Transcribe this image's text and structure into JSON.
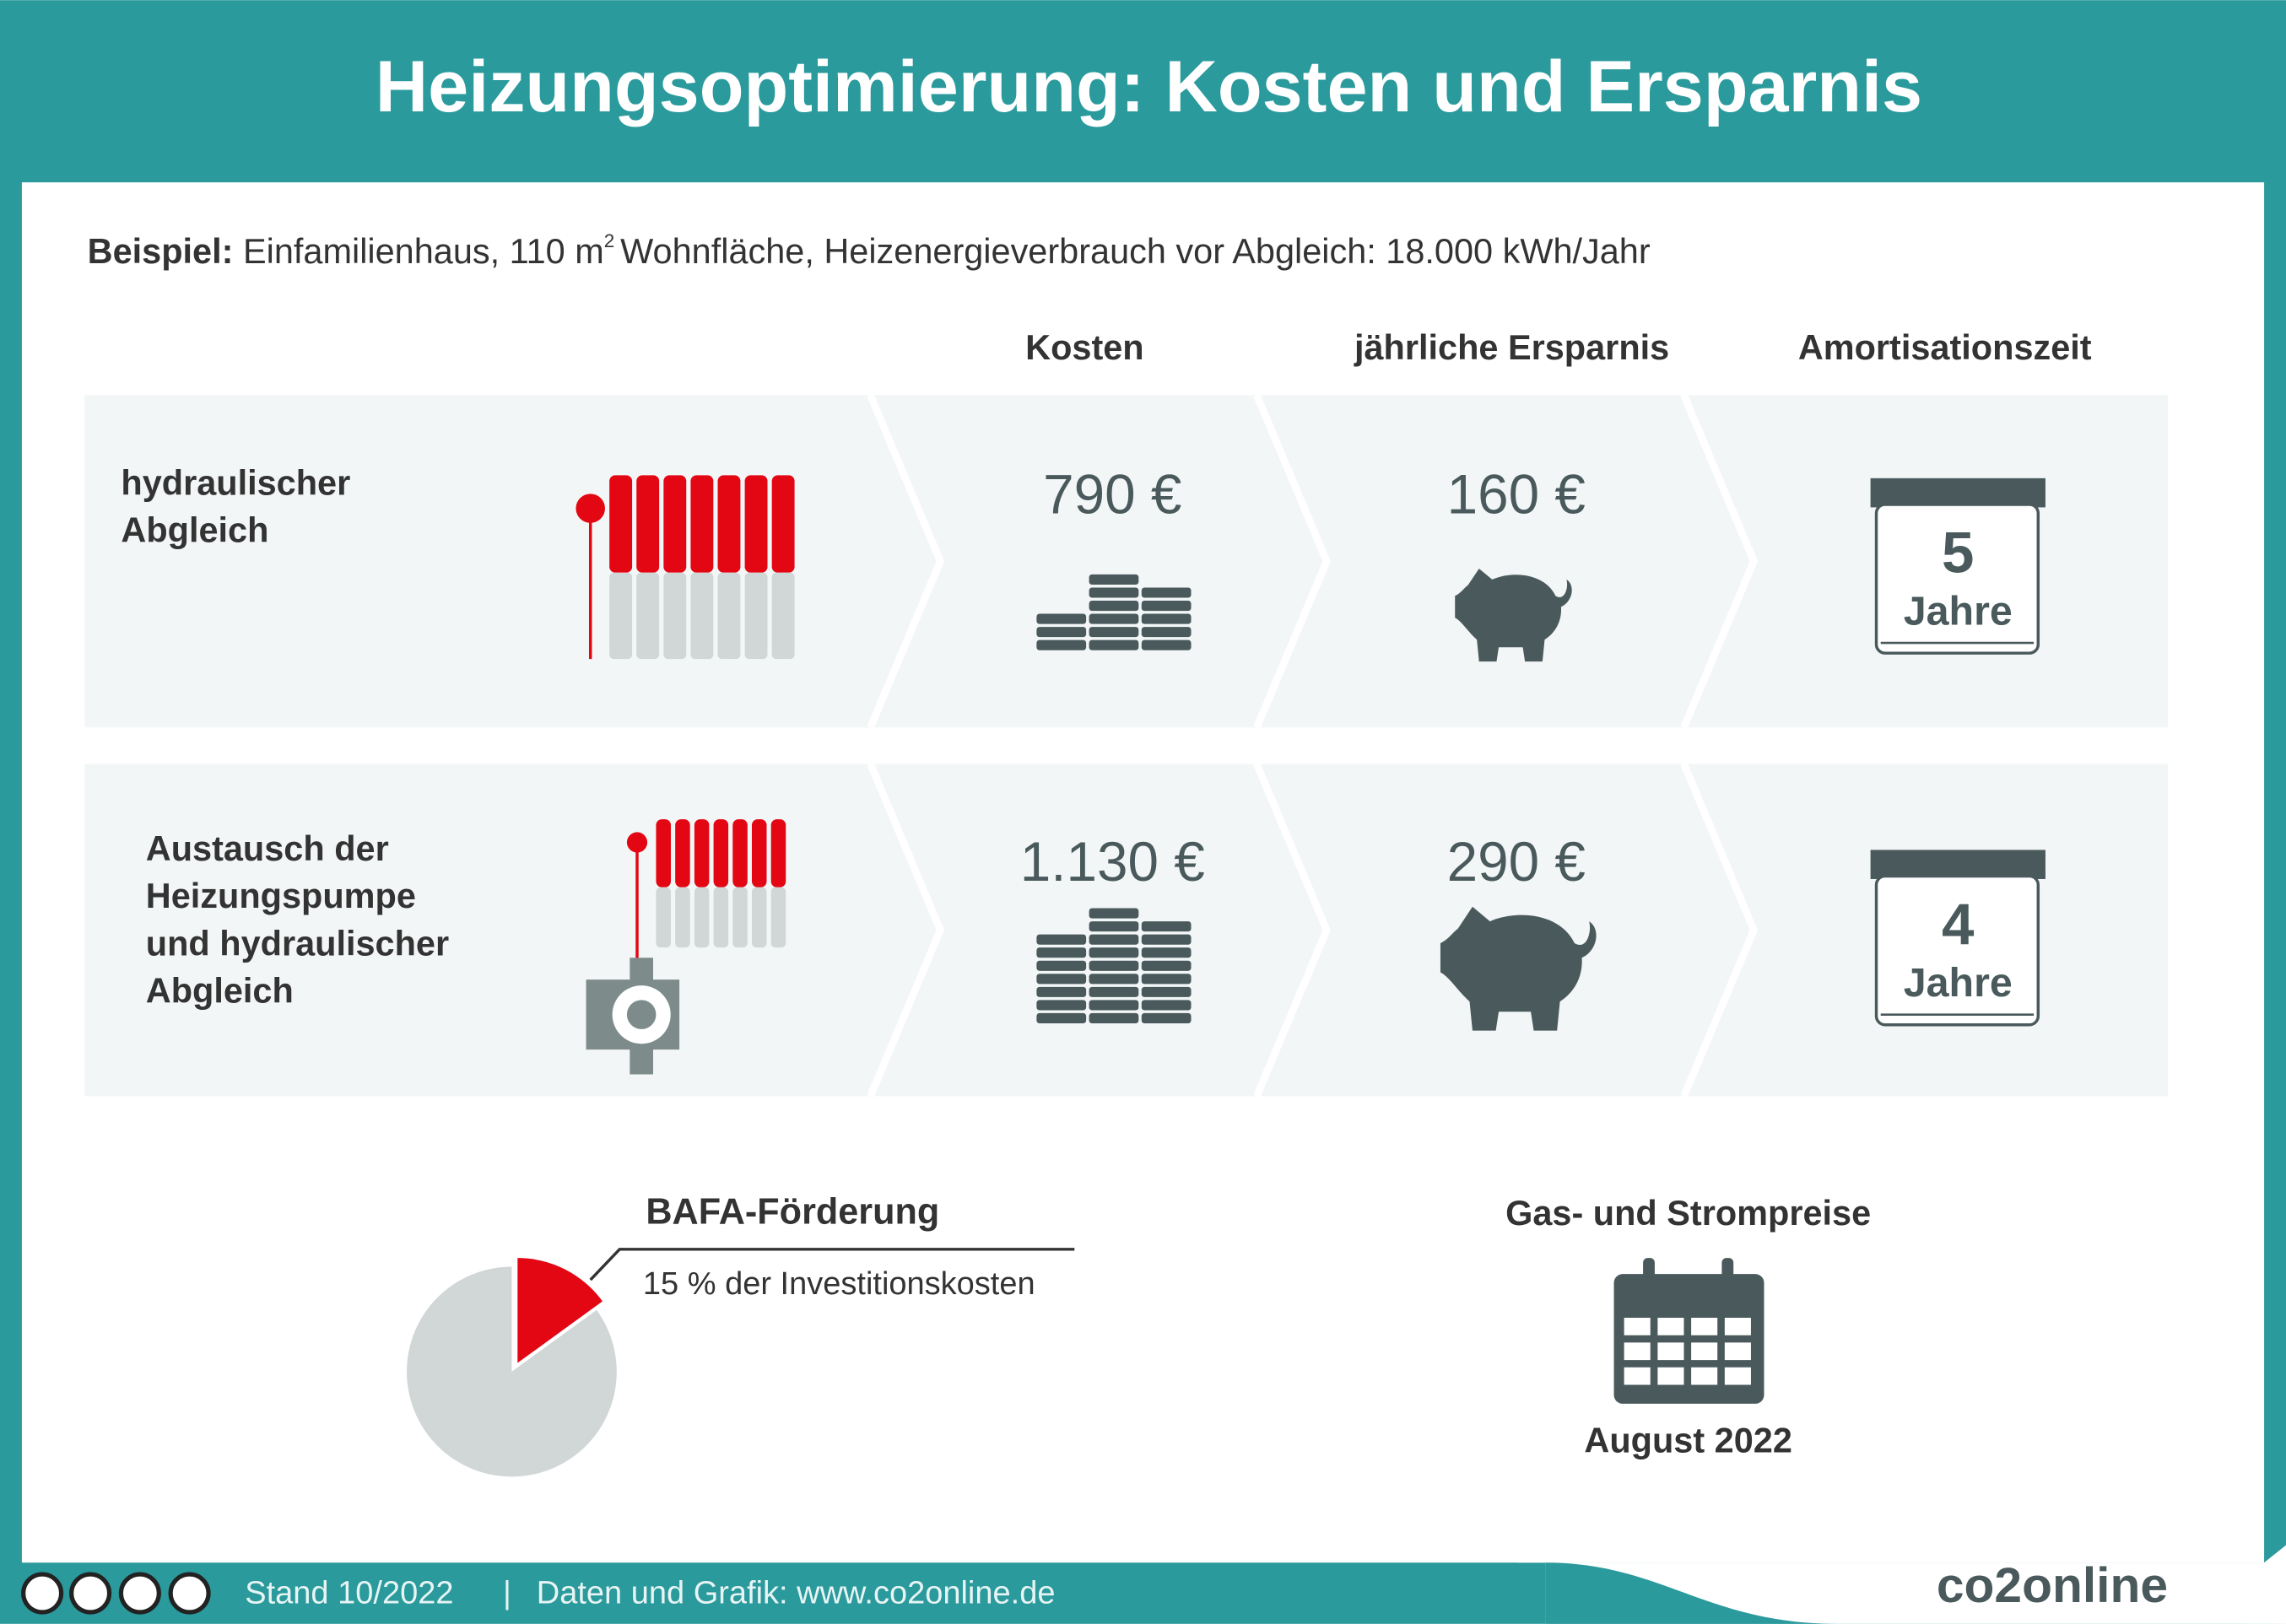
{
  "header": {
    "title": "Heizungsoptimierung: Kosten und Ersparnis"
  },
  "example": {
    "label": "Beispiel:",
    "text_before": "Einfamilienhaus, 110 m",
    "superscript": "2",
    "text_after": "Wohnfläche, Heizenergieverbrauch vor Abgleich: 18.000 kWh/Jahr"
  },
  "table": {
    "columns": [
      "Kosten",
      "jährliche Ersparnis",
      "Amortisationszeit"
    ],
    "rows": [
      {
        "label": [
          "hydraulischer",
          "Abgleich"
        ],
        "cost": "790 €",
        "saving": "160 €",
        "years": "5",
        "years_unit": "Jahre"
      },
      {
        "label": [
          "Austausch der",
          "Heizungspumpe",
          "und hydraulischer",
          "Abgleich"
        ],
        "cost": "1.130 €",
        "saving": "290 €",
        "years": "4",
        "years_unit": "Jahre"
      }
    ]
  },
  "subsidy": {
    "title": "BAFA-Förderung",
    "text": "15 % der Investitionskosten",
    "share": 15
  },
  "prices": {
    "title": "Gas- und Strompreise",
    "date": "August 2022"
  },
  "footer": {
    "stand": "Stand 10/2022",
    "separator": "|",
    "source": "Daten und Grafik: www.co2online.de",
    "brand": "co2online"
  }
}
